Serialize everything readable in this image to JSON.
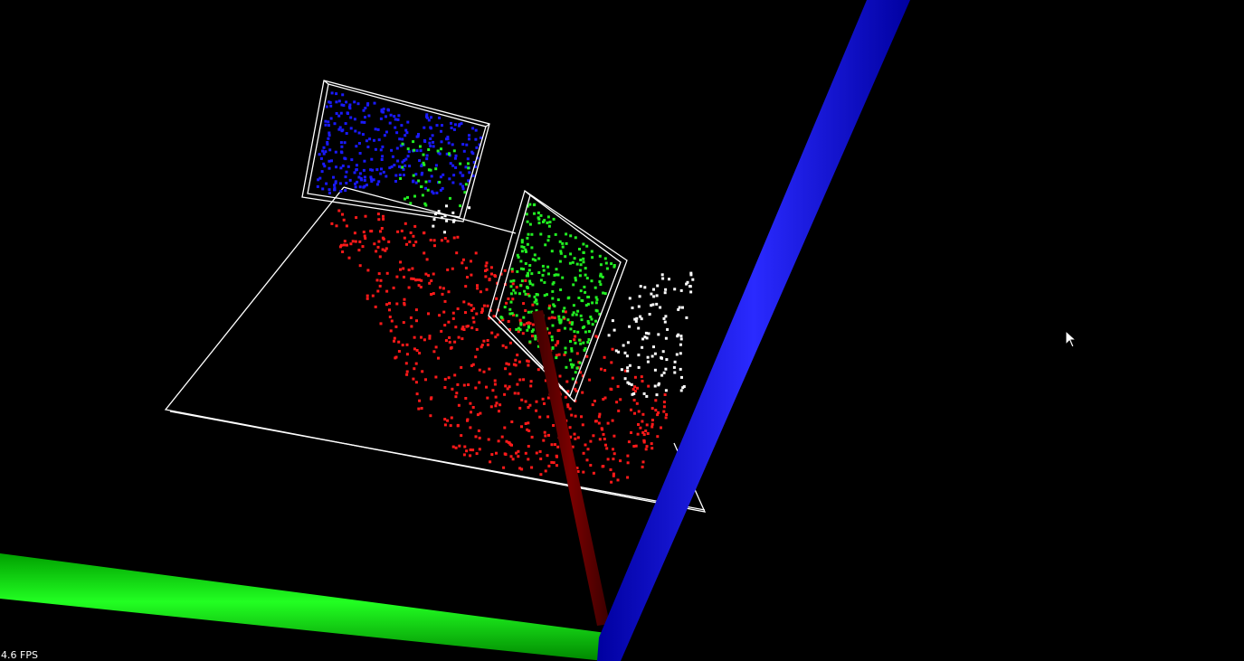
{
  "window": {
    "background": "#000000"
  },
  "hud": {
    "fps_text": "4.6 FPS"
  },
  "scene": {
    "axes": [
      {
        "name": "x-axis",
        "color": "#7a0000"
      },
      {
        "name": "y-axis",
        "color": "#00cc00"
      },
      {
        "name": "z-axis",
        "color": "#0000e0"
      }
    ],
    "wireframe_color": "#ffffff",
    "point_groups": [
      {
        "name": "red-cluster",
        "color": "#ff1a1a"
      },
      {
        "name": "blue-cluster",
        "color": "#1a1aff"
      },
      {
        "name": "green-cluster",
        "color": "#22ee22"
      },
      {
        "name": "white-cluster",
        "color": "#ffffff"
      }
    ]
  },
  "cursor": {
    "icon": "arrow-cursor-icon"
  }
}
